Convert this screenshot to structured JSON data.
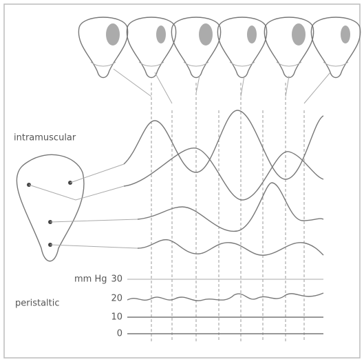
{
  "labels": {
    "intramuscular": "intramuscular",
    "peristaltic": "peristaltic"
  },
  "pressure_scale": {
    "unit": "mm Hg",
    "ticks": [
      "30",
      "20",
      "10",
      "0"
    ]
  }
}
